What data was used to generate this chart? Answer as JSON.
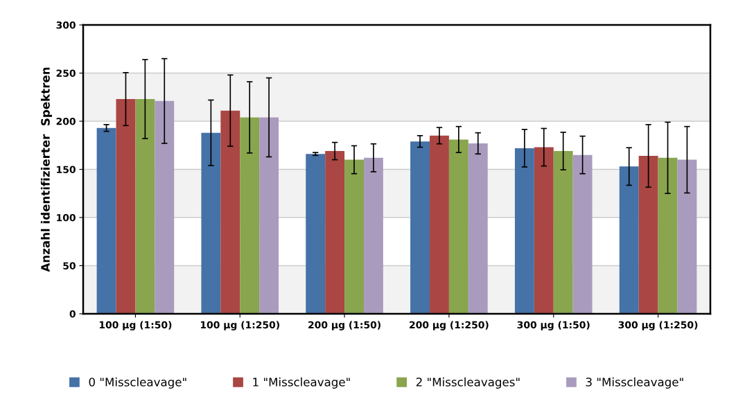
{
  "chart_data": {
    "type": "bar",
    "ylabel": "Anzahl identifizierter  Spektren",
    "categories": [
      "100 µg (1:50)",
      "100 µg (1:250)",
      "200 µg (1:50)",
      "200 µg (1:250)",
      "300 µg (1:50)",
      "300 µg (1:250)"
    ],
    "series": [
      {
        "name": "0 \"Misscleavage\"",
        "color": "#4572a7",
        "values": [
          193,
          188,
          166,
          179,
          172,
          153
        ],
        "errors": [
          3.5,
          34,
          1.5,
          6,
          19.5,
          19.5
        ]
      },
      {
        "name": "1 \"Misscleavage\"",
        "color": "#aa4643",
        "values": [
          223,
          211,
          169,
          185,
          173,
          164
        ],
        "errors": [
          27.5,
          37,
          9,
          8.5,
          19.5,
          32.5
        ]
      },
      {
        "name": "2 \"Misscleavages\"",
        "color": "#89a54e",
        "values": [
          223,
          204,
          160,
          181,
          169,
          162
        ],
        "errors": [
          41,
          37,
          14.5,
          13.5,
          19.5,
          37
        ]
      },
      {
        "name": "3 \"Misscleavage\"",
        "color": "#a99bbd",
        "values": [
          221,
          204,
          162,
          177,
          165,
          160
        ],
        "errors": [
          44,
          41,
          14.5,
          11,
          19.5,
          34.5
        ]
      }
    ],
    "ylim": [
      0,
      300
    ],
    "yticks": [
      0,
      50,
      100,
      150,
      200,
      250,
      300
    ],
    "grid": "y",
    "legend": "bottom",
    "bands": [
      {
        "axis": "y",
        "from": 0,
        "to": 50,
        "color": "#f2f2f2"
      },
      {
        "axis": "y",
        "from": 100,
        "to": 150,
        "color": "#f2f2f2"
      },
      {
        "axis": "y",
        "from": 200,
        "to": 250,
        "color": "#f2f2f2"
      }
    ]
  }
}
